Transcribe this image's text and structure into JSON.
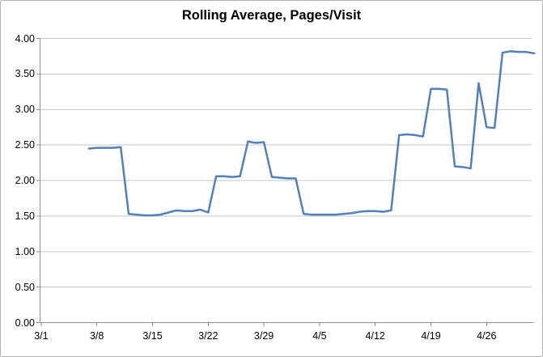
{
  "chart_data": {
    "type": "line",
    "title": "Rolling Average, Pages/Visit",
    "legend": "none",
    "grid": "horizontal-only",
    "ylim": [
      0,
      4
    ],
    "y_tick_labels": [
      "4.00",
      "3.50",
      "3.00",
      "2.50",
      "2.00",
      "1.50",
      "1.00",
      "0.50",
      "0.00"
    ],
    "x_axis_tick_labels": [
      "3/1",
      "3/8",
      "3/15",
      "3/22",
      "3/29",
      "4/5",
      "4/12",
      "4/19",
      "4/26"
    ],
    "x_tick_interval_days": 7,
    "start_day_offset_from_first_tick": 6,
    "x": [
      "3/7",
      "3/8",
      "3/9",
      "3/10",
      "3/11",
      "3/12",
      "3/13",
      "3/14",
      "3/15",
      "3/16",
      "3/17",
      "3/18",
      "3/19",
      "3/20",
      "3/21",
      "3/22",
      "3/23",
      "3/24",
      "3/25",
      "3/26",
      "3/27",
      "3/28",
      "3/29",
      "3/30",
      "3/31",
      "4/1",
      "4/2",
      "4/3",
      "4/4",
      "4/5",
      "4/6",
      "4/7",
      "4/8",
      "4/9",
      "4/10",
      "4/11",
      "4/12",
      "4/13",
      "4/14",
      "4/15",
      "4/16",
      "4/17",
      "4/18",
      "4/19",
      "4/20",
      "4/21",
      "4/22",
      "4/23",
      "4/24",
      "4/25",
      "4/26",
      "4/27",
      "4/28",
      "4/29",
      "4/30",
      "5/1",
      "5/2"
    ],
    "values": [
      2.45,
      2.46,
      2.46,
      2.46,
      2.47,
      1.53,
      1.52,
      1.51,
      1.51,
      1.52,
      1.55,
      1.58,
      1.57,
      1.57,
      1.59,
      1.55,
      2.06,
      2.06,
      2.05,
      2.06,
      2.55,
      2.53,
      2.54,
      2.05,
      2.04,
      2.03,
      2.03,
      1.53,
      1.52,
      1.52,
      1.52,
      1.52,
      1.53,
      1.54,
      1.56,
      1.57,
      1.57,
      1.56,
      1.58,
      2.64,
      2.65,
      2.64,
      2.62,
      3.29,
      3.29,
      3.28,
      2.2,
      2.19,
      2.17,
      3.37,
      2.75,
      2.74,
      3.8,
      3.82,
      3.81,
      3.81,
      3.79
    ]
  },
  "colors": {
    "line": "#4F81BD",
    "gridline": "#C6C6C6",
    "axis": "#8C8C8C",
    "text": "#000000",
    "border": "#B3B3B3",
    "background": "#FFFFFF"
  }
}
